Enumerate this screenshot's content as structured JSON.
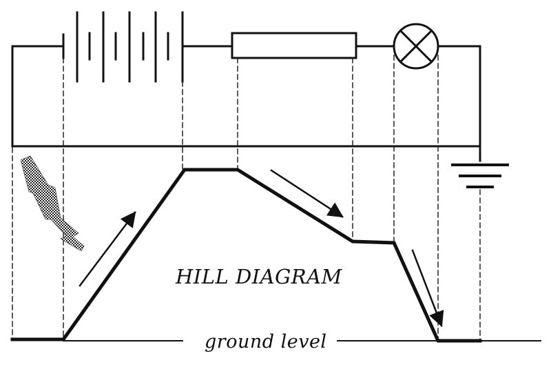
{
  "title": "HILL DIAGRAM",
  "ground_label": "ground level",
  "colors": {
    "ink": "#111111",
    "background": "#ffffff"
  },
  "components": [
    {
      "name": "battery",
      "icon": "battery-icon",
      "cells": 5
    },
    {
      "name": "resistor",
      "icon": "resistor-icon"
    },
    {
      "name": "lamp",
      "icon": "lamp-icon"
    },
    {
      "name": "earth",
      "icon": "ground-icon"
    }
  ]
}
